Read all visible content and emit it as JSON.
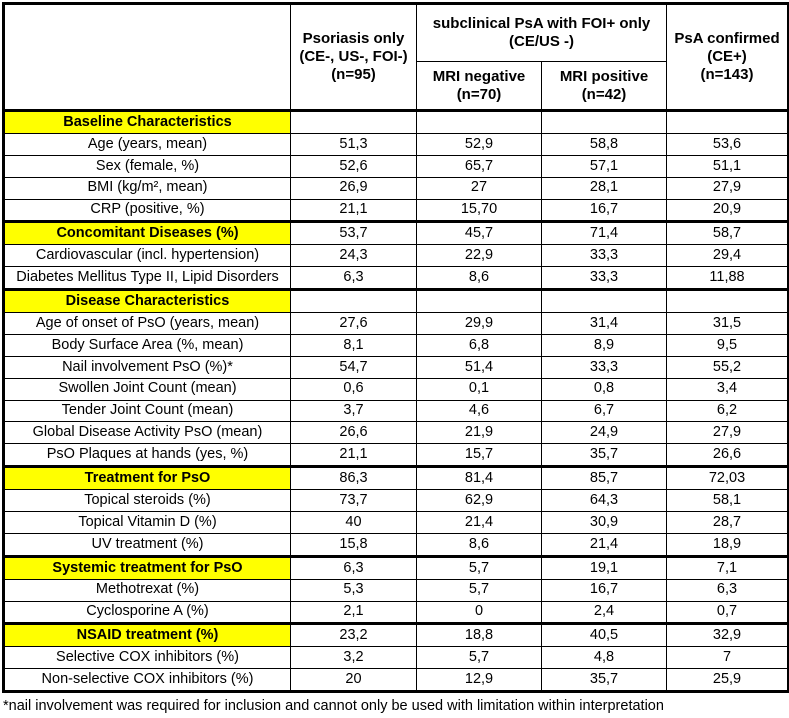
{
  "header": {
    "corner": "",
    "col_psoriasis_only": "Psoriasis only\n(CE-, US-, FOI-)\n(n=95)",
    "col_subclinical_group": "subclinical PsA with FOI+ only\n(CE/US -)",
    "col_mri_negative": "MRI negative\n(n=70)",
    "col_mri_positive": "MRI positive\n(n=42)",
    "col_psa_confirmed": "PsA confirmed\n(CE+)\n(n=143)"
  },
  "rows": [
    {
      "type": "section",
      "label": "Baseline Characteristics",
      "values": [
        "",
        "",
        "",
        ""
      ]
    },
    {
      "type": "data",
      "label": "Age (years, mean)",
      "values": [
        "51,3",
        "52,9",
        "58,8",
        "53,6"
      ]
    },
    {
      "type": "data",
      "label": "Sex (female, %)",
      "values": [
        "52,6",
        "65,7",
        "57,1",
        "51,1"
      ]
    },
    {
      "type": "data",
      "label": "BMI (kg/m², mean)",
      "values": [
        "26,9",
        "27",
        "28,1",
        "27,9"
      ]
    },
    {
      "type": "data",
      "label": "CRP (positive, %)",
      "values": [
        "21,1",
        "15,70",
        "16,7",
        "20,9"
      ]
    },
    {
      "type": "section",
      "label": "Concomitant Diseases (%)",
      "values": [
        "53,7",
        "45,7",
        "71,4",
        "58,7"
      ]
    },
    {
      "type": "data",
      "label": "Cardiovascular (incl. hypertension)",
      "values": [
        "24,3",
        "22,9",
        "33,3",
        "29,4"
      ]
    },
    {
      "type": "data",
      "label": "Diabetes Mellitus Type II, Lipid Disorders",
      "values": [
        "6,3",
        "8,6",
        "33,3",
        "11,88"
      ]
    },
    {
      "type": "section",
      "label": "Disease Characteristics",
      "values": [
        "",
        "",
        "",
        ""
      ]
    },
    {
      "type": "data",
      "label": "Age of onset of PsO (years, mean)",
      "values": [
        "27,6",
        "29,9",
        "31,4",
        "31,5"
      ]
    },
    {
      "type": "data",
      "label": "Body Surface Area (%, mean)",
      "values": [
        "8,1",
        "6,8",
        "8,9",
        "9,5"
      ]
    },
    {
      "type": "data",
      "label": "Nail involvement PsO (%)*",
      "values": [
        "54,7",
        "51,4",
        "33,3",
        "55,2"
      ]
    },
    {
      "type": "data",
      "label": "Swollen Joint Count (mean)",
      "values": [
        "0,6",
        "0,1",
        "0,8",
        "3,4"
      ]
    },
    {
      "type": "data",
      "label": "Tender Joint Count (mean)",
      "values": [
        "3,7",
        "4,6",
        "6,7",
        "6,2"
      ]
    },
    {
      "type": "data",
      "label": "Global Disease Activity PsO (mean)",
      "values": [
        "26,6",
        "21,9",
        "24,9",
        "27,9"
      ]
    },
    {
      "type": "data",
      "label": "PsO Plaques at hands (yes, %)",
      "values": [
        "21,1",
        "15,7",
        "35,7",
        "26,6"
      ]
    },
    {
      "type": "section",
      "label": "Treatment for PsO",
      "values": [
        "86,3",
        "81,4",
        "85,7",
        "72,03"
      ]
    },
    {
      "type": "data",
      "label": "Topical steroids (%)",
      "values": [
        "73,7",
        "62,9",
        "64,3",
        "58,1"
      ]
    },
    {
      "type": "data",
      "label": "Topical Vitamin D (%)",
      "values": [
        "40",
        "21,4",
        "30,9",
        "28,7"
      ]
    },
    {
      "type": "data",
      "label": "UV treatment (%)",
      "values": [
        "15,8",
        "8,6",
        "21,4",
        "18,9"
      ]
    },
    {
      "type": "section",
      "label": "Systemic treatment for PsO",
      "values": [
        "6,3",
        "5,7",
        "19,1",
        "7,1"
      ]
    },
    {
      "type": "data",
      "label": "Methotrexat (%)",
      "values": [
        "5,3",
        "5,7",
        "16,7",
        "6,3"
      ]
    },
    {
      "type": "data",
      "label": "Cyclosporine A (%)",
      "values": [
        "2,1",
        "0",
        "2,4",
        "0,7"
      ]
    },
    {
      "type": "section",
      "label": "NSAID treatment (%)",
      "values": [
        "23,2",
        "18,8",
        "40,5",
        "32,9"
      ]
    },
    {
      "type": "data",
      "label": "Selective COX inhibitors (%)",
      "values": [
        "3,2",
        "5,7",
        "4,8",
        "7"
      ]
    },
    {
      "type": "data",
      "label": "Non-selective COX inhibitors (%)",
      "values": [
        "20",
        "12,9",
        "35,7",
        "25,9"
      ]
    }
  ],
  "footnote": "*nail involvement was required for inclusion and cannot only be used with limitation within interpretation",
  "colors": {
    "section_bg": "#FFFF00",
    "border": "#000000",
    "text": "#000000",
    "background": "#FFFFFF"
  }
}
